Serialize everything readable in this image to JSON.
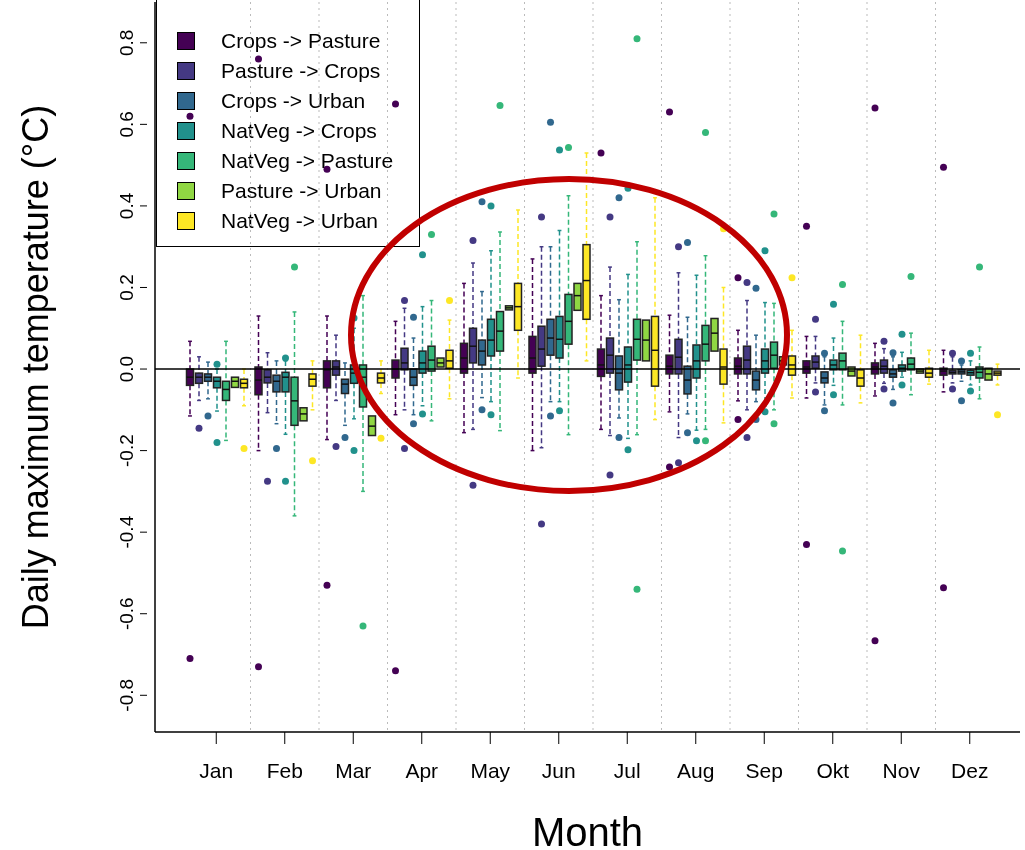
{
  "chart_data": {
    "type": "box",
    "xlabel": "Month",
    "ylabel": "Daily maximum temperature (°C)",
    "categories": [
      "Jan",
      "Feb",
      "Mar",
      "Apr",
      "May",
      "Jun",
      "Jul",
      "Aug",
      "Sep",
      "Okt",
      "Nov",
      "Dez"
    ],
    "ylim": [
      -0.89,
      0.9
    ],
    "yticks": [
      -0.8,
      -0.6,
      -0.4,
      -0.2,
      {
        "value": 0,
        "label": "0.0"
      },
      0.2,
      0.4,
      0.6,
      0.8
    ],
    "grid": "x",
    "legend": "top left",
    "marker": "circle",
    "line_style": "dashed",
    "ref_lines": [
      {
        "axis": "y",
        "value": 0,
        "color": "#000000"
      }
    ],
    "series": [
      {
        "name": "Crops -> Pasture",
        "color": "#440154",
        "boxes": [
          {
            "low": -0.115,
            "q1": -0.04,
            "median": -0.02,
            "q3": 0.0,
            "high": 0.068,
            "outliers": [
              0.62,
              -0.71
            ]
          },
          {
            "low": -0.2,
            "q1": -0.063,
            "median": -0.027,
            "q3": 0.005,
            "high": 0.13,
            "outliers": [
              0.76,
              -0.73
            ]
          },
          {
            "low": -0.173,
            "q1": -0.046,
            "median": -0.002,
            "q3": 0.02,
            "high": 0.13,
            "outliers": [
              0.49,
              -0.53
            ]
          },
          {
            "low": -0.112,
            "q1": -0.022,
            "median": 0.0,
            "q3": 0.022,
            "high": 0.117,
            "outliers": [
              0.65,
              -0.74
            ]
          },
          {
            "low": -0.156,
            "q1": -0.01,
            "median": 0.027,
            "q3": 0.063,
            "high": 0.21
          },
          {
            "low": -0.2,
            "q1": -0.01,
            "median": 0.027,
            "q3": 0.08,
            "high": 0.27
          },
          {
            "low": -0.148,
            "q1": -0.018,
            "median": 0.01,
            "q3": 0.049,
            "high": 0.18,
            "outliers": [
              0.53
            ]
          },
          {
            "low": -0.105,
            "q1": -0.012,
            "median": 0.007,
            "q3": 0.034,
            "high": 0.132,
            "outliers": [
              0.63,
              -0.24
            ]
          },
          {
            "low": -0.078,
            "q1": -0.012,
            "median": 0.007,
            "q3": 0.027,
            "high": 0.095,
            "outliers": [
              0.224,
              -0.124
            ]
          },
          {
            "low": -0.071,
            "q1": -0.01,
            "median": 0.005,
            "q3": 0.02,
            "high": 0.08,
            "outliers": [
              0.35,
              -0.43
            ]
          },
          {
            "low": -0.066,
            "q1": -0.012,
            "median": 0.005,
            "q3": 0.015,
            "high": 0.063,
            "outliers": [
              0.64,
              -0.666
            ]
          },
          {
            "low": -0.056,
            "q1": -0.015,
            "median": -0.005,
            "q3": 0.002,
            "high": 0.046,
            "outliers": [
              0.495,
              -0.536
            ]
          }
        ]
      },
      {
        "name": "Pasture -> Crops",
        "color": "#443983",
        "boxes": [
          {
            "low": -0.077,
            "q1": -0.035,
            "median": -0.02,
            "q3": -0.01,
            "high": 0.03,
            "outliers": [
              -0.145
            ]
          },
          {
            "low": -0.107,
            "q1": -0.034,
            "median": -0.02,
            "q3": -0.002,
            "high": 0.04,
            "outliers": [
              -0.275
            ]
          },
          {
            "low": -0.077,
            "q1": -0.015,
            "median": 0.005,
            "q3": 0.02,
            "high": 0.083,
            "outliers": [
              -0.19
            ]
          },
          {
            "low": -0.1,
            "q1": -0.002,
            "median": 0.015,
            "q3": 0.051,
            "high": 0.149,
            "outliers": [
              0.168,
              -0.195
            ]
          },
          {
            "low": -0.148,
            "q1": 0.015,
            "median": 0.056,
            "q3": 0.1,
            "high": 0.26,
            "outliers": [
              0.315,
              -0.285
            ]
          },
          {
            "low": -0.193,
            "q1": 0.007,
            "median": 0.049,
            "q3": 0.105,
            "high": 0.3,
            "outliers": [
              0.373,
              -0.38
            ]
          },
          {
            "low": -0.163,
            "q1": -0.01,
            "median": 0.034,
            "q3": 0.076,
            "high": 0.25,
            "outliers": [
              0.373,
              -0.26
            ]
          },
          {
            "low": -0.168,
            "q1": -0.012,
            "median": 0.029,
            "q3": 0.073,
            "high": 0.236,
            "outliers": [
              0.3,
              -0.23
            ]
          },
          {
            "low": -0.1,
            "q1": -0.012,
            "median": 0.022,
            "q3": 0.056,
            "high": 0.168,
            "outliers": [
              0.212,
              -0.168
            ]
          },
          {
            "low": -0.034,
            "q1": 0.002,
            "median": 0.017,
            "q3": 0.032,
            "high": 0.08,
            "outliers": [
              0.122,
              -0.056
            ]
          },
          {
            "low": -0.035,
            "q1": -0.01,
            "median": 0.007,
            "q3": 0.022,
            "high": 0.05,
            "outliers": [
              0.068,
              -0.049
            ]
          },
          {
            "low": -0.034,
            "q1": -0.012,
            "median": -0.008,
            "q3": -0.003,
            "high": 0.03,
            "outliers": [
              0.039,
              -0.049
            ]
          }
        ]
      },
      {
        "name": "Crops -> Urban",
        "color": "#31688e",
        "boxes": [
          {
            "low": -0.073,
            "q1": -0.03,
            "median": -0.02,
            "q3": -0.012,
            "high": 0.017,
            "outliers": [
              -0.115
            ]
          },
          {
            "low": -0.134,
            "q1": -0.056,
            "median": -0.03,
            "q3": -0.015,
            "high": 0.02,
            "outliers": [
              -0.195
            ]
          },
          {
            "low": -0.138,
            "q1": -0.06,
            "median": -0.037,
            "q3": -0.025,
            "high": 0.015,
            "outliers": [
              -0.168
            ]
          },
          {
            "low": -0.112,
            "q1": -0.04,
            "median": -0.02,
            "q3": 0.0,
            "high": 0.076,
            "outliers": [
              0.127,
              -0.134
            ]
          },
          {
            "low": -0.07,
            "q1": 0.01,
            "median": 0.044,
            "q3": 0.071,
            "high": 0.19,
            "outliers": [
              0.41,
              -0.1
            ]
          },
          {
            "low": -0.08,
            "q1": 0.034,
            "median": 0.076,
            "q3": 0.122,
            "high": 0.3,
            "outliers": [
              0.605,
              -0.115
            ]
          },
          {
            "low": -0.12,
            "q1": -0.051,
            "median": -0.01,
            "q3": 0.032,
            "high": 0.17,
            "outliers": [
              0.42,
              -0.168
            ]
          },
          {
            "low": -0.11,
            "q1": -0.061,
            "median": -0.027,
            "q3": 0.007,
            "high": 0.127,
            "outliers": [
              0.31,
              -0.156
            ]
          },
          {
            "low": -0.08,
            "q1": -0.051,
            "median": -0.027,
            "q3": -0.005,
            "high": 0.083,
            "outliers": [
              0.198,
              -0.124
            ]
          },
          {
            "low": -0.088,
            "q1": -0.034,
            "median": -0.022,
            "q3": -0.007,
            "high": 0.03,
            "outliers": [
              0.039,
              -0.102
            ]
          },
          {
            "low": -0.05,
            "q1": -0.02,
            "median": -0.012,
            "q3": -0.002,
            "high": 0.03,
            "outliers": [
              0.04,
              -0.083
            ]
          },
          {
            "low": -0.03,
            "q1": -0.012,
            "median": -0.007,
            "q3": -0.002,
            "high": 0.01,
            "outliers": [
              0.02,
              -0.078
            ]
          }
        ]
      },
      {
        "name": "NatVeg -> Crops",
        "color": "#21918c",
        "boxes": [
          {
            "low": -0.103,
            "q1": -0.046,
            "median": -0.03,
            "q3": -0.02,
            "high": 0.0,
            "outliers": [
              0.012,
              -0.18
            ]
          },
          {
            "low": -0.16,
            "q1": -0.056,
            "median": -0.02,
            "q3": -0.008,
            "high": 0.02,
            "outliers": [
              0.027,
              -0.275
            ]
          },
          {
            "low": -0.122,
            "q1": -0.035,
            "median": -0.01,
            "q3": 0.01,
            "high": 0.1,
            "outliers": [
              0.125,
              -0.2
            ]
          },
          {
            "low": -0.09,
            "q1": -0.01,
            "median": 0.015,
            "q3": 0.044,
            "high": 0.153,
            "outliers": [
              0.28,
              -0.11
            ]
          },
          {
            "low": -0.08,
            "q1": 0.032,
            "median": 0.071,
            "q3": 0.122,
            "high": 0.29,
            "outliers": [
              0.4,
              -0.112
            ]
          },
          {
            "low": -0.08,
            "q1": 0.027,
            "median": 0.073,
            "q3": 0.129,
            "high": 0.34,
            "outliers": [
              0.537,
              -0.102
            ]
          },
          {
            "low": -0.17,
            "q1": -0.032,
            "median": 0.01,
            "q3": 0.054,
            "high": 0.232,
            "outliers": [
              0.443,
              -0.198
            ]
          },
          {
            "low": -0.15,
            "q1": -0.022,
            "median": 0.02,
            "q3": 0.059,
            "high": 0.23,
            "outliers": [
              -0.176
            ]
          },
          {
            "low": -0.09,
            "q1": -0.01,
            "median": 0.02,
            "q3": 0.049,
            "high": 0.163,
            "outliers": [
              0.29,
              -0.105
            ]
          },
          {
            "low": -0.04,
            "q1": -0.002,
            "median": 0.01,
            "q3": 0.022,
            "high": 0.076,
            "outliers": [
              0.159,
              -0.063
            ]
          },
          {
            "low": -0.02,
            "q1": -0.005,
            "median": 0.002,
            "q3": 0.01,
            "high": 0.041,
            "outliers": [
              0.085,
              -0.039
            ]
          },
          {
            "low": -0.039,
            "q1": -0.015,
            "median": -0.009,
            "q3": -0.003,
            "high": 0.02,
            "outliers": [
              0.039,
              -0.054
            ]
          }
        ]
      },
      {
        "name": "NatVeg -> Pasture",
        "color": "#35b779",
        "boxes": [
          {
            "low": -0.175,
            "q1": -0.077,
            "median": -0.05,
            "q3": -0.03,
            "high": 0.068
          },
          {
            "low": -0.36,
            "q1": -0.138,
            "median": -0.078,
            "q3": -0.02,
            "high": 0.14,
            "outliers": [
              0.25
            ]
          },
          {
            "low": -0.3,
            "q1": -0.093,
            "median": -0.02,
            "q3": 0.01,
            "high": 0.18,
            "outliers": [
              -0.63
            ]
          },
          {
            "low": -0.127,
            "q1": -0.005,
            "median": 0.022,
            "q3": 0.056,
            "high": 0.168,
            "outliers": [
              0.33
            ]
          },
          {
            "low": -0.151,
            "q1": 0.044,
            "median": 0.093,
            "q3": 0.141,
            "high": 0.336,
            "outliers": [
              0.646
            ]
          },
          {
            "low": -0.161,
            "q1": 0.061,
            "median": 0.117,
            "q3": 0.183,
            "high": 0.425,
            "outliers": [
              0.543
            ]
          },
          {
            "low": -0.161,
            "q1": 0.022,
            "median": 0.073,
            "q3": 0.122,
            "high": 0.312,
            "outliers": [
              0.81,
              -0.54
            ]
          },
          {
            "low": -0.148,
            "q1": 0.02,
            "median": 0.061,
            "q3": 0.107,
            "high": 0.278,
            "outliers": [
              0.58,
              -0.176
            ]
          },
          {
            "low": -0.1,
            "q1": 0.002,
            "median": 0.034,
            "q3": 0.066,
            "high": 0.161,
            "outliers": [
              0.38,
              -0.134
            ]
          },
          {
            "low": -0.088,
            "q1": -0.002,
            "median": 0.02,
            "q3": 0.039,
            "high": 0.117,
            "outliers": [
              0.207,
              -0.446
            ]
          },
          {
            "low": -0.063,
            "q1": -0.002,
            "median": 0.012,
            "q3": 0.027,
            "high": 0.088,
            "outliers": [
              0.227
            ]
          },
          {
            "low": -0.073,
            "q1": -0.022,
            "median": -0.008,
            "q3": 0.005,
            "high": 0.054,
            "outliers": [
              0.25
            ]
          }
        ]
      },
      {
        "name": "Pasture -> Urban",
        "color": "#90d743",
        "boxes": [
          {
            "low": -0.045,
            "q1": -0.045,
            "median": -0.03,
            "q3": -0.02,
            "high": -0.02
          },
          {
            "low": -0.127,
            "q1": -0.127,
            "median": -0.11,
            "q3": -0.095,
            "high": -0.095
          },
          {
            "low": -0.163,
            "q1": -0.163,
            "median": -0.14,
            "q3": -0.115,
            "high": -0.115
          },
          {
            "low": 0.005,
            "q1": 0.005,
            "median": 0.015,
            "q3": 0.027,
            "high": 0.027
          },
          {
            "low": 0.145,
            "q1": 0.145,
            "median": 0.15,
            "q3": 0.155,
            "high": 0.155
          },
          {
            "low": 0.144,
            "q1": 0.144,
            "median": 0.18,
            "q3": 0.21,
            "high": 0.21
          },
          {
            "low": 0.02,
            "q1": 0.02,
            "median": 0.071,
            "q3": 0.12,
            "high": 0.12
          },
          {
            "low": 0.044,
            "q1": 0.044,
            "median": 0.088,
            "q3": 0.124,
            "high": 0.124
          },
          {
            "low": 0.01,
            "q1": 0.01,
            "median": 0.02,
            "q3": 0.03,
            "high": 0.03
          },
          {
            "low": -0.017,
            "q1": -0.017,
            "median": -0.005,
            "q3": 0.005,
            "high": 0.005
          },
          {
            "low": -0.01,
            "q1": -0.01,
            "median": -0.005,
            "q3": 0.0,
            "high": 0.0
          },
          {
            "low": -0.027,
            "q1": -0.027,
            "median": -0.012,
            "q3": 0.002,
            "high": 0.002
          }
        ]
      },
      {
        "name": "NatVeg -> Urban",
        "color": "#fde725",
        "boxes": [
          {
            "low": -0.09,
            "q1": -0.046,
            "median": -0.035,
            "q3": -0.025,
            "high": 0.0,
            "outliers": [
              -0.195
            ]
          },
          {
            "low": -0.1,
            "q1": -0.042,
            "median": -0.025,
            "q3": -0.012,
            "high": 0.02,
            "outliers": [
              -0.225
            ]
          },
          {
            "low": -0.06,
            "q1": -0.034,
            "median": -0.022,
            "q3": -0.01,
            "high": 0.02,
            "outliers": [
              -0.17
            ]
          },
          {
            "low": -0.073,
            "q1": 0.002,
            "median": 0.02,
            "q3": 0.046,
            "high": 0.12,
            "outliers": [
              0.168
            ]
          },
          {
            "low": -0.022,
            "q1": 0.095,
            "median": 0.153,
            "q3": 0.21,
            "high": 0.39
          },
          {
            "low": 0.02,
            "q1": 0.122,
            "median": 0.217,
            "q3": 0.305,
            "high": 0.53
          },
          {
            "low": -0.124,
            "q1": -0.042,
            "median": 0.046,
            "q3": 0.129,
            "high": 0.42
          },
          {
            "low": -0.132,
            "q1": -0.037,
            "median": 0.005,
            "q3": 0.049,
            "high": 0.2,
            "outliers": [
              0.344
            ]
          },
          {
            "low": -0.071,
            "q1": -0.015,
            "median": 0.01,
            "q3": 0.032,
            "high": 0.095,
            "outliers": [
              0.224
            ]
          },
          {
            "low": -0.083,
            "q1": -0.042,
            "median": -0.022,
            "q3": -0.002,
            "high": 0.083
          },
          {
            "low": -0.037,
            "q1": -0.02,
            "median": -0.01,
            "q3": 0.002,
            "high": 0.046
          },
          {
            "low": -0.039,
            "q1": -0.015,
            "median": -0.01,
            "q3": -0.005,
            "high": 0.012,
            "outliers": [
              -0.112
            ]
          }
        ]
      }
    ]
  }
}
